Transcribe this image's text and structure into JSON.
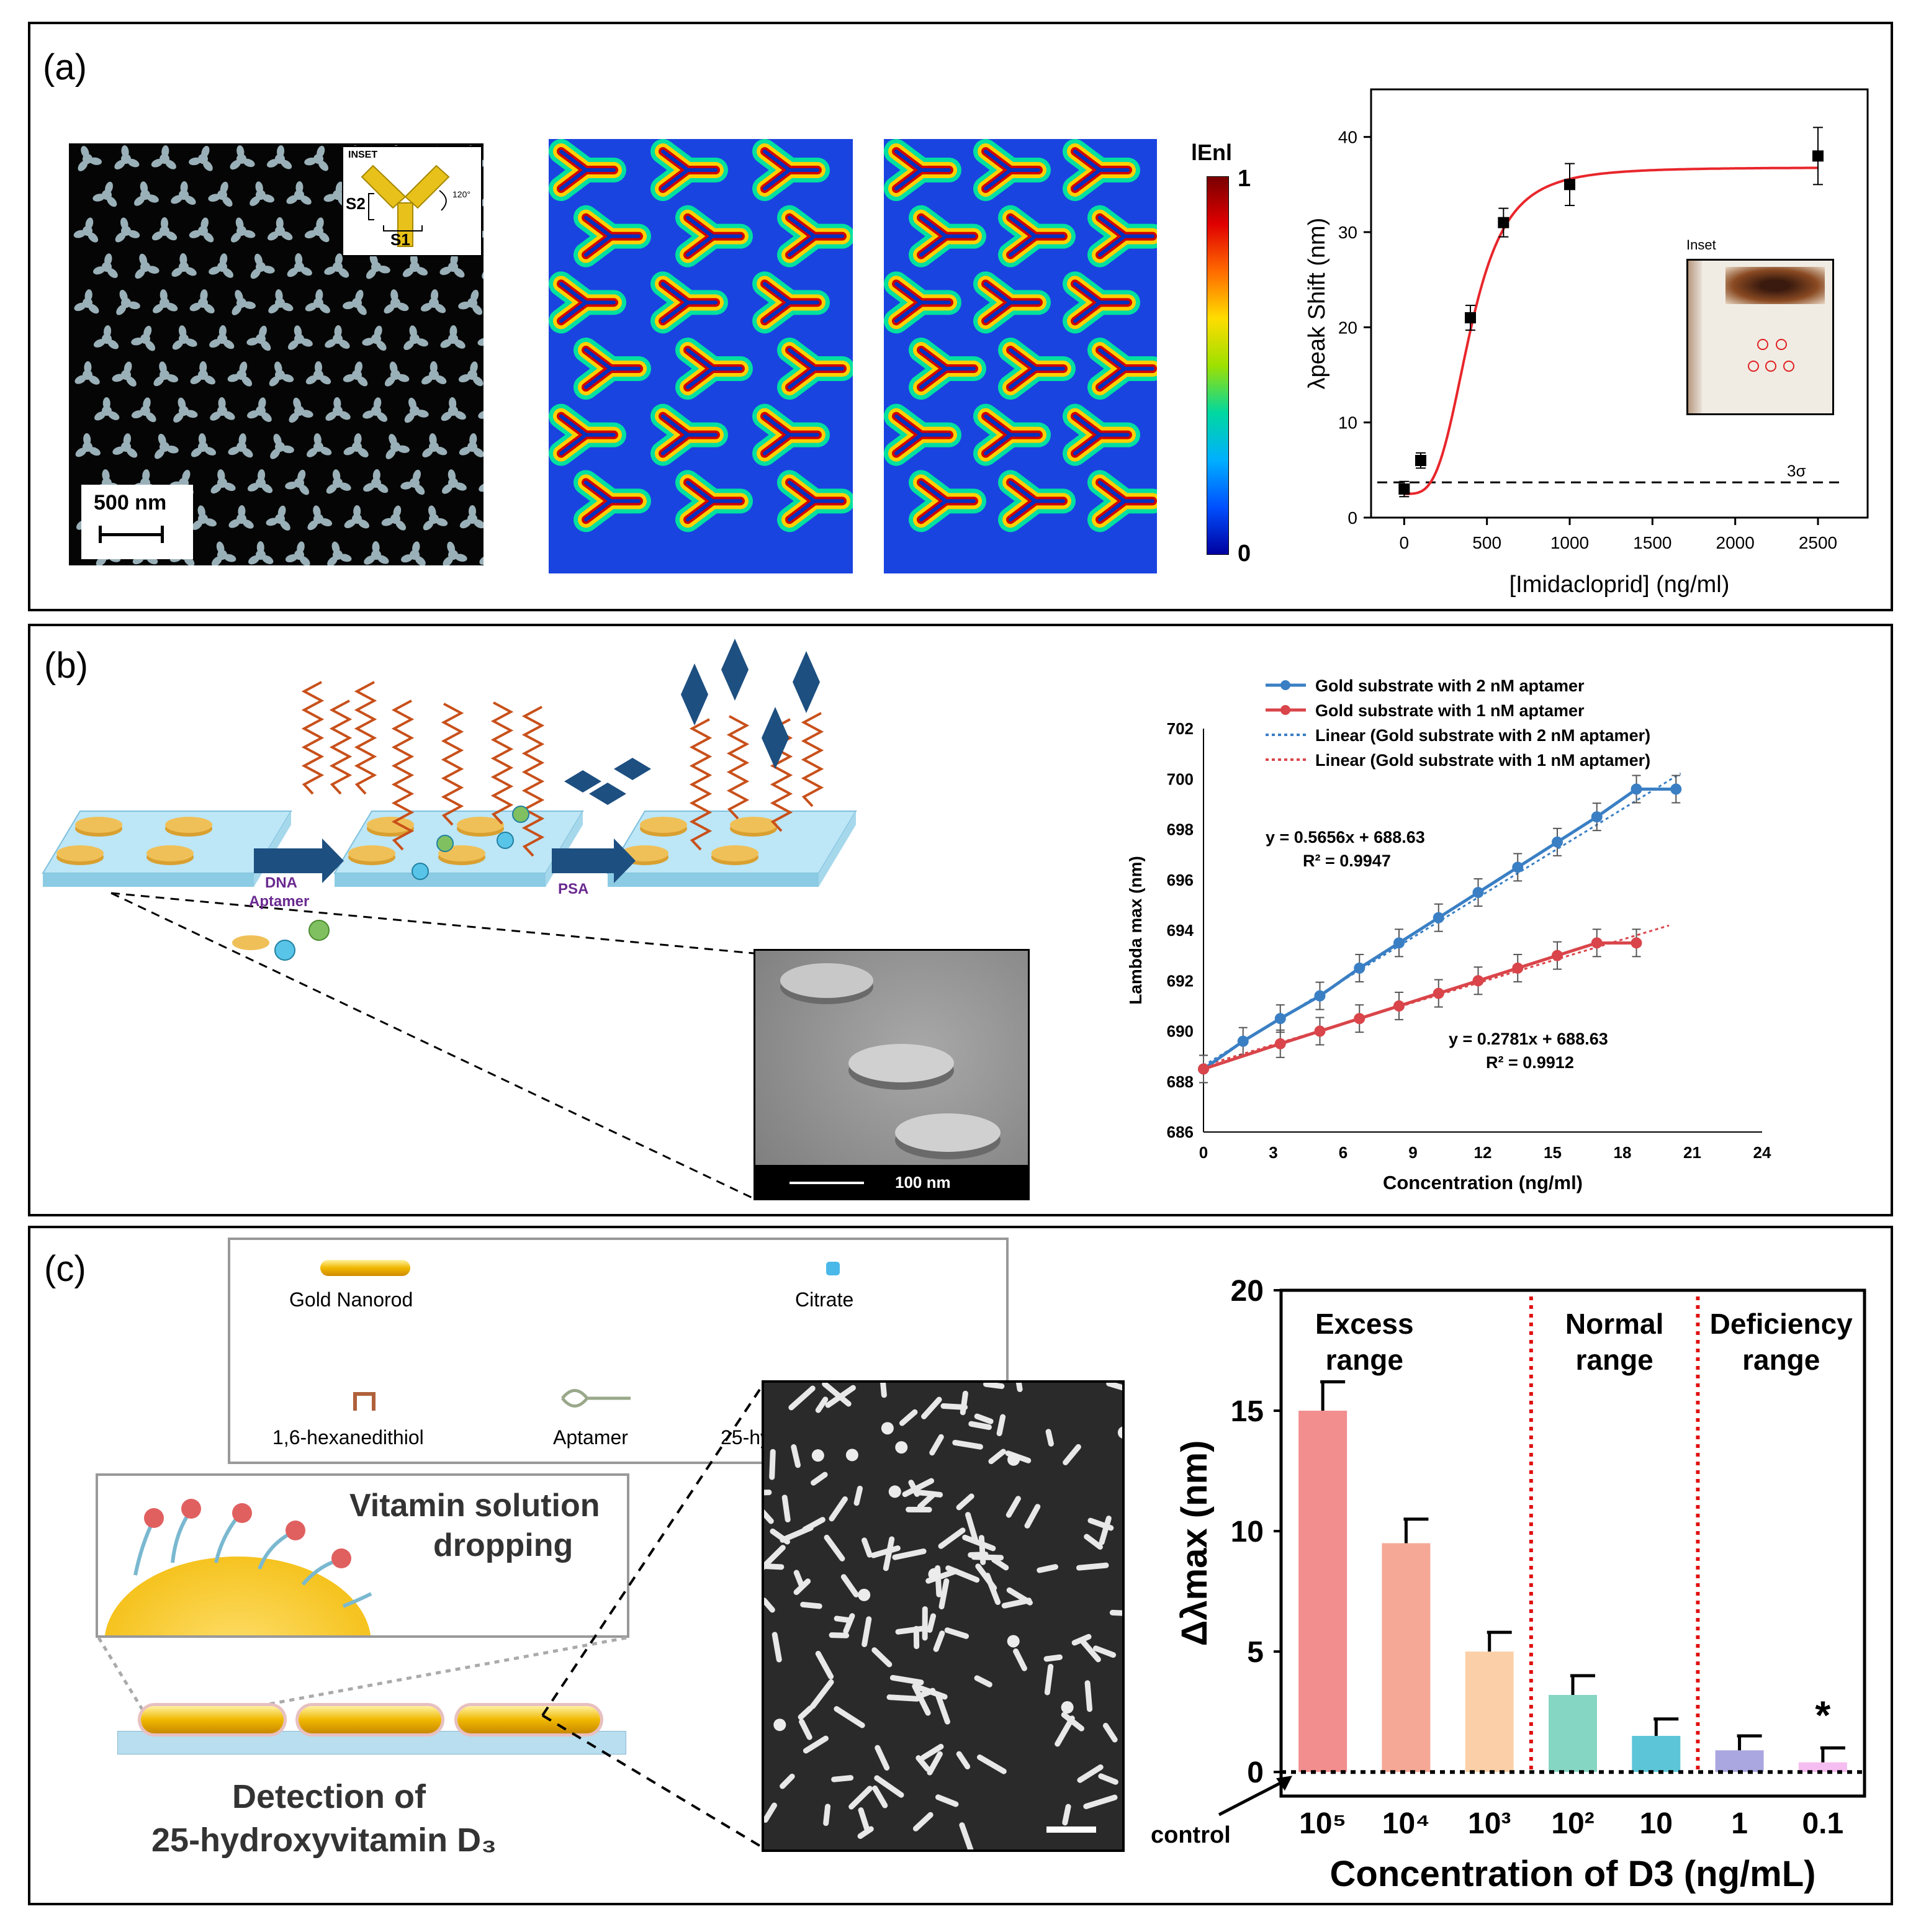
{
  "panels": {
    "a": {
      "label": "(a)"
    },
    "b": {
      "label": "(b)"
    },
    "c": {
      "label": "(c)"
    }
  },
  "a": {
    "inset_title": "INSET",
    "s1": "S1",
    "s2": "S2",
    "angle": "120°",
    "scale_bar": "500 nm",
    "colorbar_label": "lEnl",
    "colorbar_max": "1",
    "colorbar_min": "0",
    "photo_inset_label": "Inset",
    "threshold_label": "3σ"
  },
  "b": {
    "step1": "DNA",
    "step1b": "Aptamer",
    "step2": "PSA",
    "sem_scale": "100 nm",
    "eq1": "y = 0.5656x + 688.63",
    "r1": "R² = 0.9947",
    "eq2": "y = 0.2781x + 688.63",
    "r2": "R² = 0.9912"
  },
  "c": {
    "legend": {
      "gold": "Gold Nanorod",
      "citrate": "Citrate",
      "hexa": "1,6-hexanedithiol",
      "aptamer": "Aptamer",
      "vitd": "25-hydroxyvitamin D₃"
    },
    "zoom_text_1": "Vitamin solution",
    "zoom_text_2": "dropping",
    "detect_1": "Detection of",
    "detect_2": "25-hydroxyvitamin D₃",
    "control": "control",
    "star": "*",
    "range1a": "Excess",
    "range1b": "range",
    "range2a": "Normal",
    "range2b": "range",
    "range3a": "Deficiency",
    "range3b": "range"
  },
  "chart_data": [
    {
      "type": "scatter",
      "xlabel": "[Imidacloprid] (ng/ml)",
      "ylabel": "λpeak Shift (nm)",
      "xlim": [
        -200,
        2800
      ],
      "ylim": [
        0,
        45
      ],
      "xticks": [
        "0",
        "500",
        "1000",
        "1500",
        "2000",
        "2500"
      ],
      "yticks": [
        "0",
        "10",
        "20",
        "30",
        "40"
      ],
      "points": [
        {
          "x": 0,
          "y": 3,
          "err": 0.8
        },
        {
          "x": 100,
          "y": 6,
          "err": 0.8
        },
        {
          "x": 400,
          "y": 21,
          "err": 1.3
        },
        {
          "x": 600,
          "y": 31,
          "err": 1.5
        },
        {
          "x": 1000,
          "y": 35,
          "err": 2.2
        },
        {
          "x": 2500,
          "y": 38,
          "err": 3
        }
      ],
      "threshold": 3.7,
      "fit_color": "#e8262b"
    },
    {
      "type": "line",
      "xlabel": "Concentration (ng/ml)",
      "ylabel": "Lambda max (nm)",
      "xlim": [
        0,
        24
      ],
      "ylim": [
        686,
        702
      ],
      "xticks": [
        "0",
        "3",
        "6",
        "9",
        "12",
        "15",
        "18",
        "21",
        "24"
      ],
      "yticks": [
        "686",
        "688",
        "690",
        "692",
        "694",
        "696",
        "698",
        "700",
        "702"
      ],
      "legend": [
        "Gold substrate with 2 nM aptamer",
        "Gold substrate with 1 nM aptamer",
        "Linear (Gold substrate with 2 nM aptamer)",
        "Linear (Gold substrate with 1 nM aptamer)"
      ],
      "series": [
        {
          "color": "#3a7fc4",
          "x": [
            0,
            1.7,
            3.3,
            5.0,
            6.7,
            8.4,
            10.1,
            11.8,
            13.5,
            15.2,
            16.9,
            18.6,
            20.3
          ],
          "y": [
            688.5,
            689.6,
            690.5,
            691.4,
            692.5,
            693.5,
            694.5,
            695.5,
            696.5,
            697.5,
            698.5,
            699.6,
            699.6
          ]
        },
        {
          "color": "#d9454a",
          "x": [
            0,
            3.3,
            5.0,
            6.7,
            8.4,
            10.1,
            11.8,
            13.5,
            15.2,
            16.9,
            18.6
          ],
          "y": [
            688.5,
            689.5,
            690.0,
            690.5,
            691.0,
            691.5,
            692.0,
            692.5,
            693.0,
            693.5,
            693.5
          ]
        }
      ],
      "fits": [
        {
          "color": "#3a7fc4",
          "slope": 0.5656,
          "intercept": 688.63,
          "xmax": 20.5
        },
        {
          "color": "#d9454a",
          "slope": 0.2781,
          "intercept": 688.63,
          "xmax": 20.0
        }
      ]
    },
    {
      "type": "bar",
      "xlabel": "Concentration of D3 (ng/mL)",
      "ylabel": "Δλmax (nm)",
      "ylim": [
        -1,
        20
      ],
      "yticks": [
        "0",
        "5",
        "10",
        "15",
        "20"
      ],
      "categories": [
        "10⁵",
        "10⁴",
        "10³",
        "10²",
        "10",
        "1",
        "0.1"
      ],
      "values": [
        15,
        9.5,
        5,
        3.2,
        1.5,
        0.9,
        0.4
      ],
      "errors": [
        1.2,
        1.0,
        0.8,
        0.8,
        0.7,
        0.6,
        0.6
      ],
      "colors": [
        "#f28e8e",
        "#f5a896",
        "#fbd0a8",
        "#86d6c4",
        "#5cc6d8",
        "#a9a6e0",
        "#f6bdf0"
      ]
    }
  ]
}
